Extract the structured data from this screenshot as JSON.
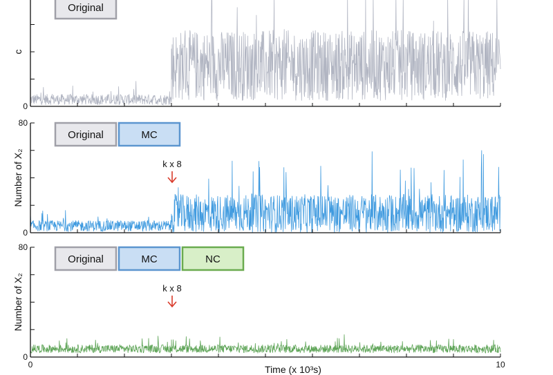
{
  "chart_data": [
    {
      "type": "line",
      "ylabel": "c",
      "ylim": [
        0,
        80
      ],
      "yticks": [
        "0",
        "",
        "",
        "",
        ""
      ],
      "xlim": [
        0,
        10
      ],
      "series": [
        {
          "color": "#a9adbb",
          "segments": [
            {
              "x_range": [
                0,
                3
              ],
              "mean": 5,
              "amplitude": 4
            },
            {
              "x_range": [
                3,
                10
              ],
              "mean": 30,
              "amplitude": 26
            }
          ]
        }
      ],
      "boxes": [
        {
          "label": "Original",
          "fill": "#e8e8ec",
          "stroke": "#a0a0a8"
        }
      ],
      "annotation": null
    },
    {
      "type": "line",
      "ylabel": "Number of X₂",
      "ylim": [
        0,
        80
      ],
      "yticks": [
        "0",
        "",
        "",
        "",
        "80"
      ],
      "xlim": [
        0,
        10
      ],
      "series": [
        {
          "color": "#2a8fdc",
          "segments": [
            {
              "x_range": [
                0,
                3
              ],
              "mean": 5,
              "amplitude": 4
            },
            {
              "x_range": [
                3,
                10
              ],
              "mean": 14,
              "amplitude": 14
            }
          ]
        }
      ],
      "boxes": [
        {
          "label": "Original",
          "fill": "#e8e8ec",
          "stroke": "#a0a0a8"
        },
        {
          "label": "MC",
          "fill": "#c9def4",
          "stroke": "#5b95cf"
        }
      ],
      "annotation": {
        "text": "k x 8",
        "x": 3,
        "color": "#d93a2a"
      }
    },
    {
      "type": "line",
      "ylabel": "Number of X₂",
      "ylim": [
        0,
        80
      ],
      "yticks": [
        "0",
        "",
        "",
        "",
        "80"
      ],
      "xlim": [
        0,
        10
      ],
      "xticks": [
        "0",
        "",
        "",
        "",
        "",
        "",
        "",
        "",
        "",
        "",
        "10"
      ],
      "xlabel": "Time (x 10³s)",
      "series": [
        {
          "color": "#4d9a45",
          "segments": [
            {
              "x_range": [
                0,
                3
              ],
              "mean": 6,
              "amplitude": 3
            },
            {
              "x_range": [
                3,
                10
              ],
              "mean": 6,
              "amplitude": 3
            }
          ]
        }
      ],
      "boxes": [
        {
          "label": "Original",
          "fill": "#e8e8ec",
          "stroke": "#a0a0a8"
        },
        {
          "label": "MC",
          "fill": "#c9def4",
          "stroke": "#5b95cf"
        },
        {
          "label": "NC",
          "fill": "#d8efc8",
          "stroke": "#6aab4f"
        }
      ],
      "annotation": {
        "text": "k x 8",
        "x": 3,
        "color": "#d93a2a"
      }
    }
  ]
}
